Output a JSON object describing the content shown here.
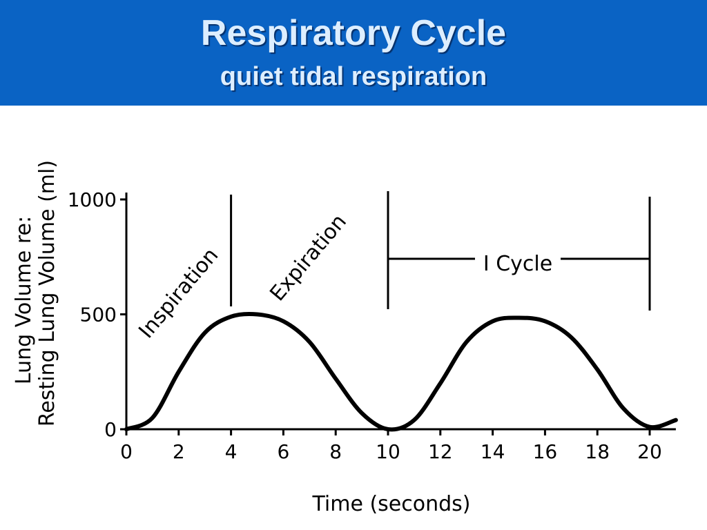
{
  "header": {
    "title": "Respiratory Cycle",
    "subtitle": "quiet tidal respiration"
  },
  "colors": {
    "banner": "#0a63c4",
    "title_text": "#ddeeff",
    "curve": "#000000"
  },
  "chart_data": {
    "type": "line",
    "xlabel": "Time (seconds)",
    "ylabel_line1": "Lung Volume re:",
    "ylabel_line2": "Resting Lung Volume (ml)",
    "xlim": [
      0,
      21
    ],
    "ylim": [
      0,
      1000
    ],
    "x_ticks": [
      0,
      2,
      4,
      6,
      8,
      10,
      12,
      14,
      16,
      18,
      20
    ],
    "y_ticks": [
      0,
      500,
      1000
    ],
    "y_tick_labels": [
      "0",
      "500",
      "1000"
    ],
    "x_tick_labels": [
      "0",
      "2",
      "4",
      "6",
      "8",
      "10",
      "12",
      "14",
      "16",
      "18",
      "20"
    ],
    "grid": false,
    "series": [
      {
        "x": [
          0,
          1,
          2,
          3,
          4,
          5,
          6,
          7,
          8,
          9,
          10,
          11,
          12,
          13,
          14,
          15,
          16,
          17,
          18,
          19,
          20,
          21
        ],
        "values": [
          0,
          50,
          250,
          420,
          490,
          500,
          470,
          380,
          220,
          70,
          0,
          40,
          200,
          380,
          470,
          485,
          470,
          400,
          260,
          90,
          10,
          40
        ]
      }
    ],
    "annotations": {
      "inspiration": "Inspiration",
      "expiration": "Expiration",
      "cycle": "I Cycle"
    },
    "marker_lines_x": [
      4,
      10,
      20
    ]
  }
}
